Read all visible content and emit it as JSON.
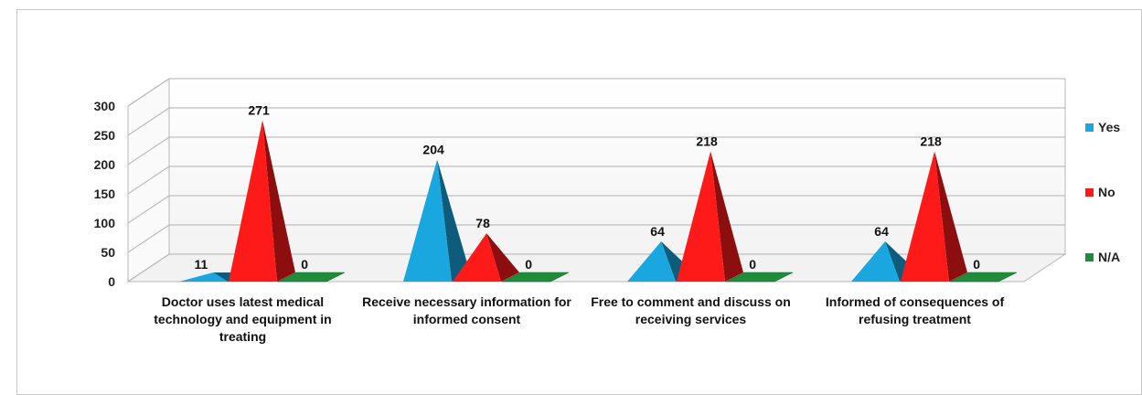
{
  "chart_data": {
    "type": "bar",
    "style": "3d-pyramid",
    "title": "",
    "xlabel": "",
    "ylabel": "",
    "ylim": [
      0,
      300
    ],
    "yticks": [
      0,
      50,
      100,
      150,
      200,
      250,
      300
    ],
    "categories": [
      "Doctor uses latest medical technology and equipment in treating",
      "Receive necessary information for informed consent",
      "Free to comment and discuss on receiving services",
      "Informed of consequences of refusing treatment"
    ],
    "series": [
      {
        "name": "Yes",
        "color": "#1aa7e0",
        "values": [
          11,
          204,
          64,
          64
        ]
      },
      {
        "name": "No",
        "color": "#ff1a1a",
        "values": [
          271,
          78,
          218,
          218
        ]
      },
      {
        "name": "N/A",
        "color": "#1e8c3a",
        "values": [
          0,
          0,
          0,
          0
        ]
      }
    ],
    "legend_position": "right",
    "grid": true
  }
}
